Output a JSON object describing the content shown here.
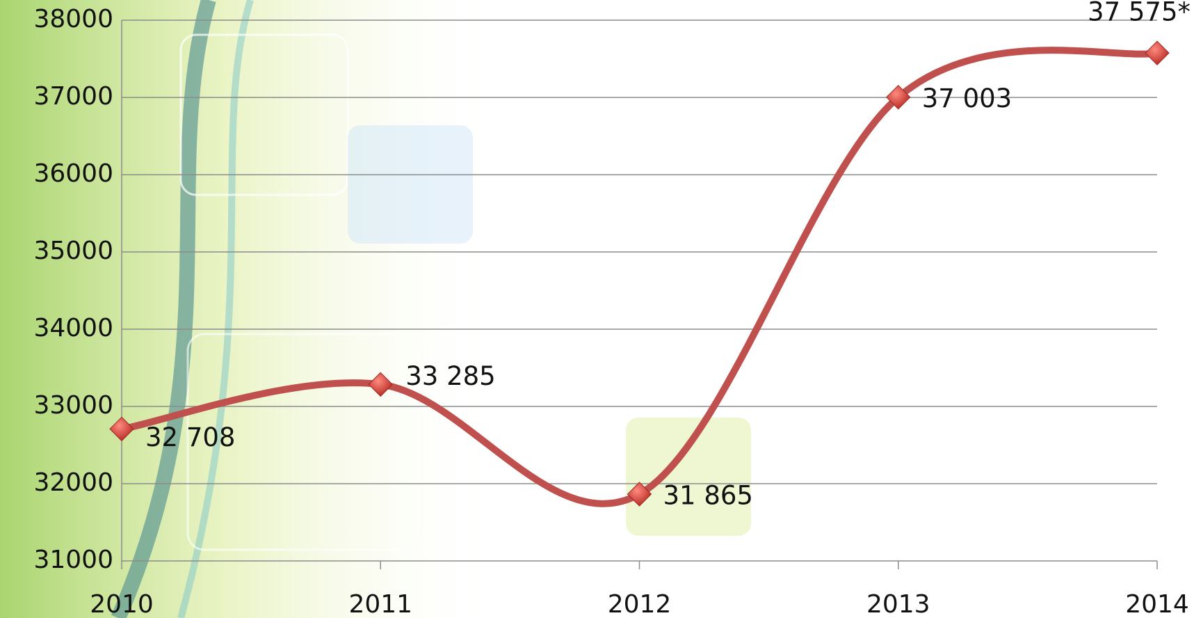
{
  "chart_data": {
    "type": "line",
    "categories": [
      "2010",
      "2011",
      "2012",
      "2013",
      "2014"
    ],
    "series": [
      {
        "name": "",
        "color": "#c0504d",
        "values": [
          32708,
          33285,
          31865,
          37003,
          37575
        ],
        "value_labels": [
          "32 708",
          "33 285",
          "31 865",
          "37 003",
          "37 575*"
        ]
      }
    ],
    "ylim": [
      31000,
      38000
    ],
    "yticks": [
      31000,
      32000,
      33000,
      34000,
      35000,
      36000,
      37000,
      38000
    ],
    "grid": true,
    "smooth": true
  }
}
